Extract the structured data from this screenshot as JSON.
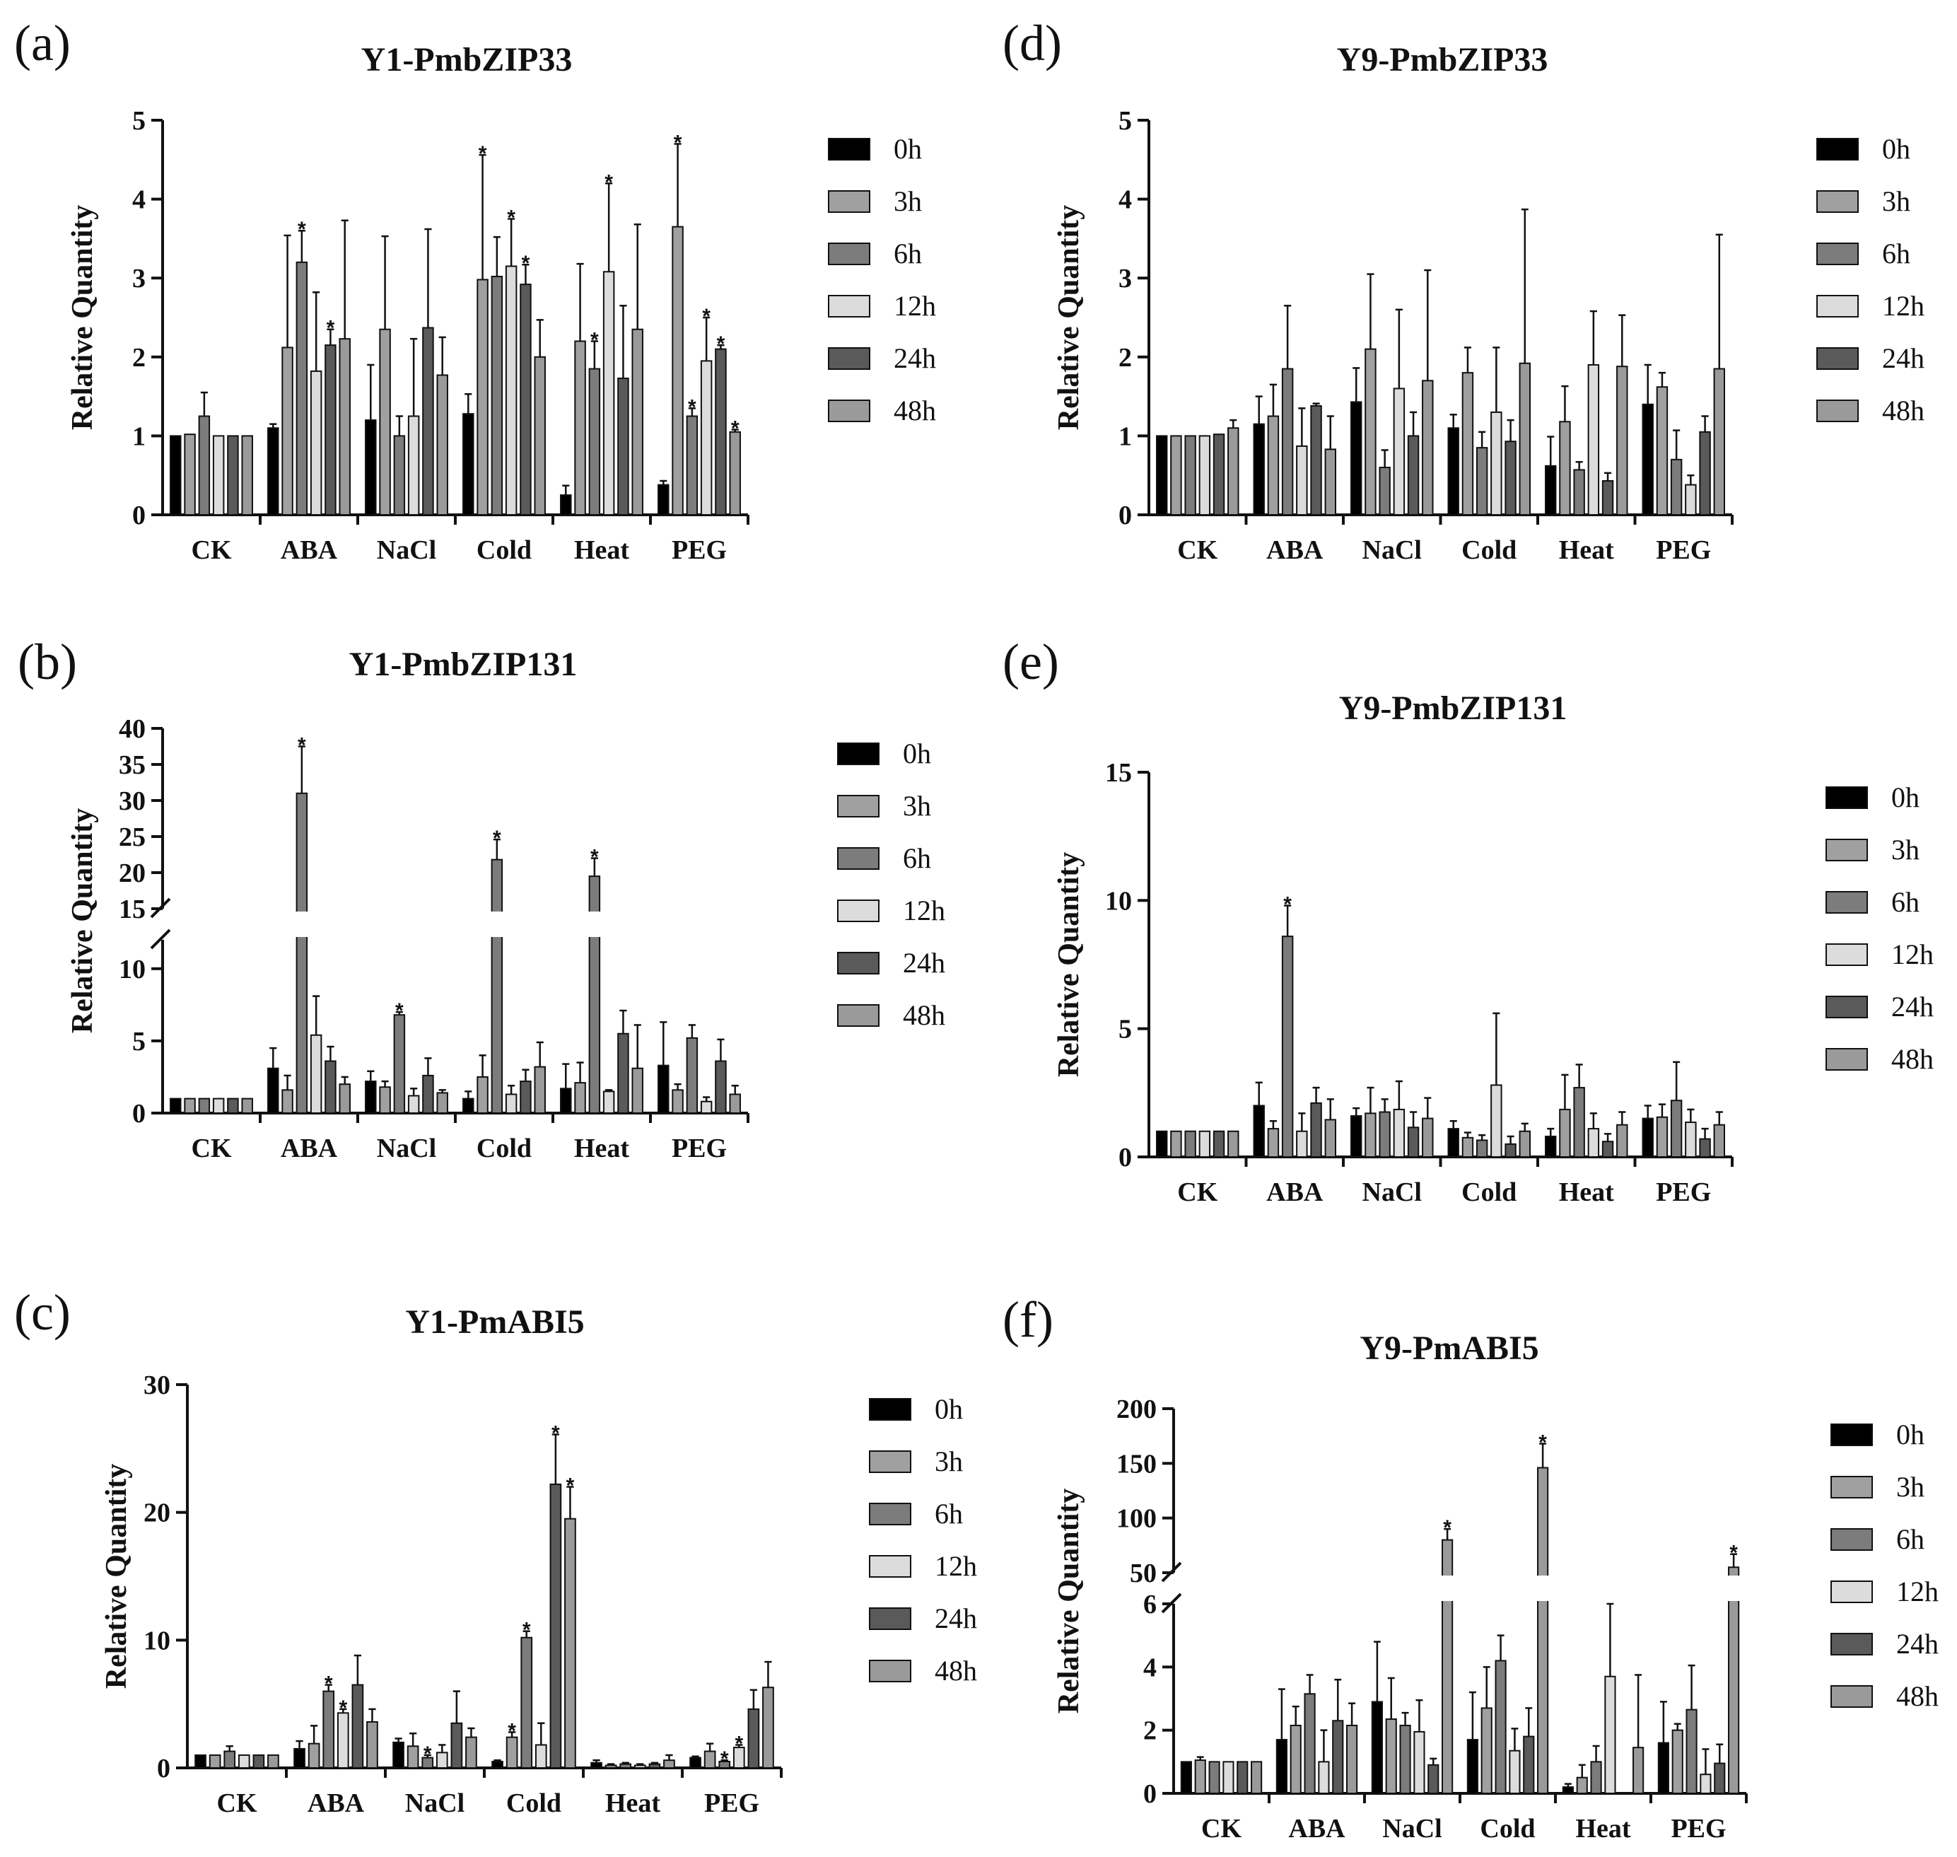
{
  "figure": {
    "legend_entries": [
      {
        "label": "0h",
        "color": "#000000"
      },
      {
        "label": "3h",
        "color": "#a0a0a0"
      },
      {
        "label": "6h",
        "color": "#7c7c7c"
      },
      {
        "label": "12h",
        "color": "#dcdcdc"
      },
      {
        "label": "24h",
        "color": "#5a5a5a"
      },
      {
        "label": "48h",
        "color": "#9a9a9a"
      }
    ]
  },
  "chart_data": [
    {
      "panel": "(a)",
      "type": "bar",
      "title": "Y1-PmbZIP33",
      "ylabel": "Relative Quantity",
      "ylim": [
        0,
        5
      ],
      "yticks": [
        0,
        1,
        2,
        3,
        4,
        5
      ],
      "categories": [
        "CK",
        "ABA",
        "NaCl",
        "Cold",
        "Heat",
        "PEG"
      ],
      "series": [
        {
          "name": "0h",
          "values": [
            1.0,
            1.1,
            1.2,
            1.28,
            0.25,
            0.38
          ],
          "errors": [
            0,
            0.05,
            0.7,
            0.25,
            0.12,
            0.05
          ],
          "sig": [
            false,
            false,
            false,
            false,
            false,
            false
          ]
        },
        {
          "name": "3h",
          "values": [
            1.02,
            2.12,
            2.35,
            2.98,
            2.2,
            3.65
          ],
          "errors": [
            0,
            1.42,
            1.18,
            1.58,
            0.98,
            1.05
          ],
          "sig": [
            false,
            false,
            false,
            true,
            false,
            true
          ]
        },
        {
          "name": "6h",
          "values": [
            1.25,
            3.2,
            1.0,
            3.02,
            1.85,
            1.25
          ],
          "errors": [
            0.3,
            0.4,
            0.25,
            0.5,
            0.35,
            0.1
          ],
          "sig": [
            false,
            true,
            false,
            false,
            true,
            true
          ]
        },
        {
          "name": "12h",
          "values": [
            1.0,
            1.82,
            1.25,
            3.15,
            3.08,
            1.95
          ],
          "errors": [
            0,
            1.0,
            0.98,
            0.6,
            1.12,
            0.55
          ],
          "sig": [
            false,
            false,
            false,
            true,
            true,
            true
          ]
        },
        {
          "name": "24h",
          "values": [
            1.0,
            2.15,
            2.37,
            2.92,
            1.73,
            2.1
          ],
          "errors": [
            0,
            0.2,
            1.25,
            0.25,
            0.92,
            0.05
          ],
          "sig": [
            false,
            true,
            false,
            true,
            false,
            true
          ]
        },
        {
          "name": "48h",
          "values": [
            1.0,
            2.23,
            1.77,
            2.0,
            2.35,
            1.05
          ],
          "errors": [
            0,
            1.5,
            0.48,
            0.47,
            1.33,
            0.03
          ],
          "sig": [
            false,
            false,
            false,
            false,
            false,
            true
          ]
        }
      ]
    },
    {
      "panel": "(b)",
      "type": "bar",
      "title": "Y1-PmbZIP131",
      "ylabel": "Relative Quantity",
      "axis_break": {
        "lower": [
          0,
          12
        ],
        "upper": [
          15,
          40
        ]
      },
      "yticks": [
        0,
        5,
        10,
        15,
        20,
        25,
        30,
        35,
        40
      ],
      "categories": [
        "CK",
        "ABA",
        "NaCl",
        "Cold",
        "Heat",
        "PEG"
      ],
      "series": [
        {
          "name": "0h",
          "values": [
            1.0,
            3.1,
            2.2,
            1.0,
            1.7,
            3.3
          ],
          "errors": [
            0,
            1.4,
            0.7,
            0.5,
            1.7,
            3.0
          ],
          "sig": [
            false,
            false,
            false,
            false,
            false,
            false
          ]
        },
        {
          "name": "3h",
          "values": [
            1.0,
            1.6,
            1.8,
            2.5,
            2.1,
            1.6
          ],
          "errors": [
            0,
            1.0,
            0.4,
            1.5,
            1.4,
            0.4
          ],
          "sig": [
            false,
            false,
            false,
            false,
            false,
            false
          ]
        },
        {
          "name": "6h",
          "values": [
            1.0,
            31.0,
            6.8,
            21.8,
            19.5,
            5.2
          ],
          "errors": [
            0,
            6.5,
            0.2,
            2.8,
            2.5,
            0.9
          ],
          "sig": [
            false,
            true,
            true,
            true,
            true,
            false
          ]
        },
        {
          "name": "12h",
          "values": [
            1.0,
            5.4,
            1.2,
            1.3,
            1.5,
            0.8
          ],
          "errors": [
            0,
            2.7,
            0.5,
            0.6,
            0.1,
            0.3
          ],
          "sig": [
            false,
            false,
            false,
            false,
            false,
            false
          ]
        },
        {
          "name": "24h",
          "values": [
            1.0,
            3.6,
            2.6,
            2.2,
            5.5,
            3.6
          ],
          "errors": [
            0,
            1.0,
            1.2,
            0.8,
            1.6,
            1.5
          ],
          "sig": [
            false,
            false,
            false,
            false,
            false,
            false
          ]
        },
        {
          "name": "48h",
          "values": [
            1.0,
            2.0,
            1.4,
            3.2,
            3.1,
            1.3
          ],
          "errors": [
            0,
            0.5,
            0.2,
            1.7,
            3.0,
            0.6
          ],
          "sig": [
            false,
            false,
            false,
            false,
            false,
            false
          ]
        }
      ]
    },
    {
      "panel": "(c)",
      "type": "bar",
      "title": "Y1-PmABI5",
      "ylabel": "Relative Quantity",
      "ylim": [
        0,
        30
      ],
      "yticks": [
        0,
        10,
        20,
        30
      ],
      "categories": [
        "CK",
        "ABA",
        "NaCl",
        "Cold",
        "Heat",
        "PEG"
      ],
      "series": [
        {
          "name": "0h",
          "values": [
            1.0,
            1.5,
            2.0,
            0.5,
            0.4,
            0.8
          ],
          "errors": [
            0,
            0.6,
            0.3,
            0.1,
            0.2,
            0.1
          ],
          "sig": [
            false,
            false,
            false,
            false,
            false,
            false
          ]
        },
        {
          "name": "3h",
          "values": [
            1.0,
            1.9,
            1.7,
            2.4,
            0.2,
            1.3
          ],
          "errors": [
            0,
            1.4,
            1.0,
            0.4,
            0.1,
            0.6
          ],
          "sig": [
            false,
            false,
            false,
            true,
            false,
            false
          ]
        },
        {
          "name": "6h",
          "values": [
            1.3,
            6.0,
            0.8,
            10.2,
            0.3,
            0.5
          ],
          "errors": [
            0.4,
            0.5,
            0.2,
            0.5,
            0.1,
            0.1
          ],
          "sig": [
            false,
            true,
            true,
            true,
            false,
            true
          ]
        },
        {
          "name": "12h",
          "values": [
            1.0,
            4.3,
            1.2,
            1.8,
            0.2,
            1.6
          ],
          "errors": [
            0,
            0.3,
            0.6,
            1.7,
            0.1,
            0.2
          ],
          "sig": [
            false,
            true,
            false,
            false,
            false,
            true
          ]
        },
        {
          "name": "24h",
          "values": [
            1.0,
            6.5,
            3.5,
            22.2,
            0.3,
            4.6
          ],
          "errors": [
            0,
            2.3,
            2.5,
            3.9,
            0.1,
            1.5
          ],
          "sig": [
            false,
            false,
            false,
            true,
            false,
            false
          ]
        },
        {
          "name": "48h",
          "values": [
            1.0,
            3.6,
            2.4,
            19.5,
            0.6,
            6.3
          ],
          "errors": [
            0,
            1.0,
            0.7,
            2.5,
            0.4,
            2.0
          ],
          "sig": [
            false,
            false,
            false,
            true,
            false,
            false
          ]
        }
      ]
    },
    {
      "panel": "(d)",
      "type": "bar",
      "title": "Y9-PmbZIP33",
      "ylabel": "Relative Quantity",
      "ylim": [
        0,
        5
      ],
      "yticks": [
        0,
        1,
        2,
        3,
        4,
        5
      ],
      "categories": [
        "CK",
        "ABA",
        "NaCl",
        "Cold",
        "Heat",
        "PEG"
      ],
      "series": [
        {
          "name": "0h",
          "values": [
            1.0,
            1.15,
            1.43,
            1.1,
            0.62,
            1.4
          ],
          "errors": [
            0,
            0.35,
            0.43,
            0.17,
            0.37,
            0.5
          ],
          "sig": [
            false,
            false,
            false,
            false,
            false,
            false
          ]
        },
        {
          "name": "3h",
          "values": [
            1.0,
            1.25,
            2.1,
            1.8,
            1.18,
            1.62
          ],
          "errors": [
            0,
            0.4,
            0.95,
            0.32,
            0.45,
            0.18
          ],
          "sig": [
            false,
            false,
            false,
            false,
            false,
            false
          ]
        },
        {
          "name": "6h",
          "values": [
            1.0,
            1.85,
            0.6,
            0.85,
            0.57,
            0.7
          ],
          "errors": [
            0,
            0.8,
            0.22,
            0.2,
            0.1,
            0.37
          ],
          "sig": [
            false,
            false,
            false,
            false,
            false,
            false
          ]
        },
        {
          "name": "12h",
          "values": [
            1.0,
            0.87,
            1.6,
            1.3,
            1.9,
            0.38
          ],
          "errors": [
            0,
            0.48,
            1.0,
            0.82,
            0.68,
            0.12
          ],
          "sig": [
            false,
            false,
            false,
            false,
            false,
            false
          ]
        },
        {
          "name": "24h",
          "values": [
            1.02,
            1.38,
            1.0,
            0.93,
            0.43,
            1.05
          ],
          "errors": [
            0,
            0.03,
            0.3,
            0.27,
            0.1,
            0.2
          ],
          "sig": [
            false,
            false,
            false,
            false,
            false,
            false
          ]
        },
        {
          "name": "48h",
          "values": [
            1.1,
            0.83,
            1.7,
            1.92,
            1.88,
            1.85
          ],
          "errors": [
            0.1,
            0.42,
            1.4,
            1.95,
            0.65,
            1.7
          ],
          "sig": [
            false,
            false,
            false,
            false,
            false,
            false
          ]
        }
      ]
    },
    {
      "panel": "(e)",
      "type": "bar",
      "title": "Y9-PmbZIP131",
      "ylabel": "Relative Quantity",
      "ylim": [
        0,
        15
      ],
      "yticks": [
        0,
        5,
        10,
        15
      ],
      "categories": [
        "CK",
        "ABA",
        "NaCl",
        "Cold",
        "Heat",
        "PEG"
      ],
      "series": [
        {
          "name": "0h",
          "values": [
            1.0,
            2.0,
            1.6,
            1.1,
            0.8,
            1.5
          ],
          "errors": [
            0,
            0.9,
            0.3,
            0.3,
            0.3,
            0.5
          ],
          "sig": [
            false,
            false,
            false,
            false,
            false,
            false
          ]
        },
        {
          "name": "3h",
          "values": [
            1.0,
            1.1,
            1.7,
            0.75,
            1.85,
            1.55
          ],
          "errors": [
            0,
            0.3,
            1.0,
            0.2,
            1.35,
            0.5
          ],
          "sig": [
            false,
            false,
            false,
            false,
            false,
            false
          ]
        },
        {
          "name": "6h",
          "values": [
            1.0,
            8.6,
            1.75,
            0.65,
            2.7,
            2.2
          ],
          "errors": [
            0,
            1.2,
            0.5,
            0.2,
            0.9,
            1.5
          ],
          "sig": [
            false,
            true,
            false,
            false,
            false,
            false
          ]
        },
        {
          "name": "12h",
          "values": [
            1.0,
            1.0,
            1.85,
            2.8,
            1.1,
            1.35
          ],
          "errors": [
            0,
            0.7,
            1.1,
            2.8,
            0.6,
            0.5
          ],
          "sig": [
            false,
            false,
            false,
            false,
            false,
            false
          ]
        },
        {
          "name": "24h",
          "values": [
            1.0,
            2.1,
            1.15,
            0.5,
            0.6,
            0.7
          ],
          "errors": [
            0,
            0.6,
            0.6,
            0.3,
            0.3,
            0.4
          ],
          "sig": [
            false,
            false,
            false,
            false,
            false,
            false
          ]
        },
        {
          "name": "48h",
          "values": [
            1.0,
            1.45,
            1.5,
            1.0,
            1.25,
            1.25
          ],
          "errors": [
            0,
            0.8,
            0.8,
            0.3,
            0.5,
            0.5
          ],
          "sig": [
            false,
            false,
            false,
            false,
            false,
            false
          ]
        }
      ]
    },
    {
      "panel": "(f)",
      "type": "bar",
      "title": "Y9-PmABI5",
      "ylabel": "Relative Quantity",
      "axis_break": {
        "lower": [
          0,
          6
        ],
        "upper": [
          50,
          200
        ]
      },
      "yticks": [
        0,
        2,
        4,
        6,
        50,
        100,
        150,
        200
      ],
      "categories": [
        "CK",
        "ABA",
        "NaCl",
        "Cold",
        "Heat",
        "PEG"
      ],
      "series": [
        {
          "name": "0h",
          "values": [
            1.0,
            1.7,
            2.9,
            1.7,
            0.2,
            1.6
          ],
          "errors": [
            0,
            1.6,
            1.9,
            1.5,
            0.1,
            1.3
          ],
          "sig": [
            false,
            false,
            false,
            false,
            false,
            false
          ]
        },
        {
          "name": "3h",
          "values": [
            1.05,
            2.15,
            2.35,
            2.7,
            0.5,
            2.0
          ],
          "errors": [
            0.1,
            0.6,
            1.3,
            1.3,
            0.4,
            0.2
          ],
          "sig": [
            false,
            false,
            false,
            false,
            false,
            false
          ]
        },
        {
          "name": "6h",
          "values": [
            1.0,
            3.15,
            2.15,
            4.2,
            1.0,
            2.65
          ],
          "errors": [
            0,
            0.6,
            0.4,
            0.8,
            0.5,
            1.4
          ],
          "sig": [
            false,
            false,
            false,
            false,
            false,
            false
          ]
        },
        {
          "name": "12h",
          "values": [
            1.0,
            1.0,
            1.95,
            1.35,
            3.7,
            0.6
          ],
          "errors": [
            0,
            1.0,
            1.0,
            0.7,
            2.3,
            0.8
          ],
          "sig": [
            false,
            false,
            false,
            false,
            false,
            false
          ]
        },
        {
          "name": "24h",
          "values": [
            1.0,
            2.3,
            0.9,
            1.8,
            0.0,
            0.95
          ],
          "errors": [
            0,
            1.3,
            0.2,
            0.9,
            0,
            0.6
          ],
          "sig": [
            false,
            false,
            false,
            false,
            false,
            false
          ]
        },
        {
          "name": "48h",
          "values": [
            1.0,
            2.15,
            80,
            146,
            1.45,
            55
          ],
          "errors": [
            0,
            0.7,
            10,
            22,
            2.3,
            12
          ],
          "sig": [
            false,
            false,
            true,
            true,
            false,
            true
          ]
        }
      ]
    }
  ]
}
